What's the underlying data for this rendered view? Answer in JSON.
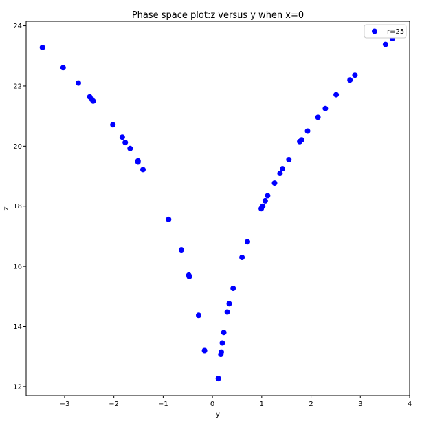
{
  "chart_data": {
    "type": "scatter",
    "title": "Phase space plot:z versus y when x=0",
    "xlabel": "y",
    "ylabel": "z",
    "xlim": [
      -3.78,
      4.0
    ],
    "ylim": [
      11.7,
      24.15
    ],
    "xticks": [
      -3,
      -2,
      -1,
      0,
      1,
      2,
      3,
      4
    ],
    "yticks": [
      12,
      14,
      16,
      18,
      20,
      22,
      24
    ],
    "grid": false,
    "legend_position": "top-right",
    "series": [
      {
        "name": "r=25",
        "color": "#0000ff",
        "points": [
          [
            -3.45,
            23.28
          ],
          [
            -3.03,
            22.61
          ],
          [
            -2.72,
            22.1
          ],
          [
            -2.49,
            21.64
          ],
          [
            -2.45,
            21.56
          ],
          [
            -2.42,
            21.5
          ],
          [
            -2.02,
            20.71
          ],
          [
            -1.83,
            20.3
          ],
          [
            -1.77,
            20.12
          ],
          [
            -1.67,
            19.92
          ],
          [
            -1.51,
            19.51
          ],
          [
            -1.51,
            19.47
          ],
          [
            -1.41,
            19.22
          ],
          [
            -0.89,
            17.56
          ],
          [
            -0.63,
            16.55
          ],
          [
            -0.48,
            15.71
          ],
          [
            -0.47,
            15.66
          ],
          [
            -0.28,
            14.37
          ],
          [
            -0.16,
            13.2
          ],
          [
            0.12,
            12.27
          ],
          [
            0.17,
            13.07
          ],
          [
            0.18,
            13.15
          ],
          [
            0.2,
            13.45
          ],
          [
            0.23,
            13.8
          ],
          [
            0.3,
            14.48
          ],
          [
            0.34,
            14.76
          ],
          [
            0.42,
            15.27
          ],
          [
            0.6,
            16.3
          ],
          [
            0.71,
            16.82
          ],
          [
            0.99,
            17.92
          ],
          [
            1.02,
            18.0
          ],
          [
            1.07,
            18.18
          ],
          [
            1.12,
            18.35
          ],
          [
            1.26,
            18.77
          ],
          [
            1.37,
            19.09
          ],
          [
            1.42,
            19.25
          ],
          [
            1.55,
            19.55
          ],
          [
            1.77,
            20.15
          ],
          [
            1.81,
            20.21
          ],
          [
            1.93,
            20.5
          ],
          [
            2.14,
            20.96
          ],
          [
            2.29,
            21.25
          ],
          [
            2.51,
            21.71
          ],
          [
            2.79,
            22.2
          ],
          [
            2.89,
            22.36
          ],
          [
            3.51,
            23.38
          ],
          [
            3.65,
            23.58
          ]
        ]
      }
    ]
  }
}
